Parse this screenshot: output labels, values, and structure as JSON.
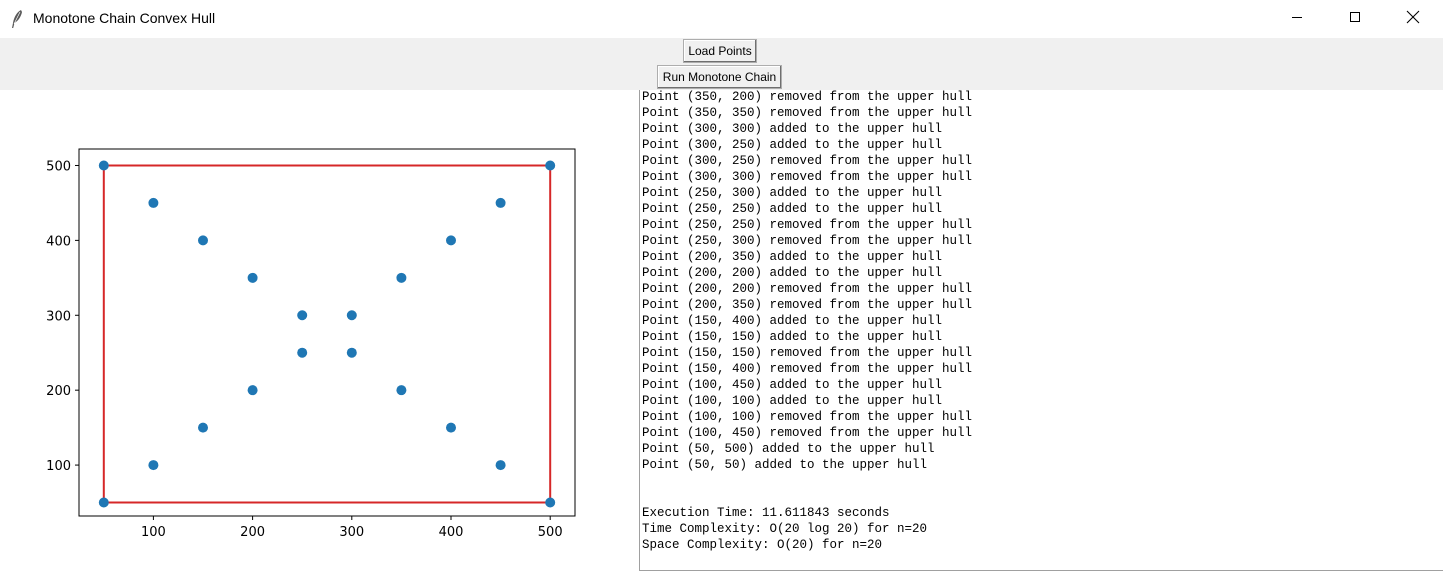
{
  "window": {
    "title": "Monotone Chain Convex Hull",
    "icon": "feather-icon",
    "controls": [
      "minimize-icon",
      "maximize-icon",
      "close-icon"
    ]
  },
  "toolbar": {
    "load_label": "Load Points",
    "run_label": "Run Monotone Chain"
  },
  "chart_data": {
    "type": "scatter",
    "title": "",
    "xlabel": "",
    "ylabel": "",
    "xlim": [
      25,
      525
    ],
    "ylim": [
      32,
      522
    ],
    "xticks": [
      100,
      200,
      300,
      400,
      500
    ],
    "yticks": [
      100,
      200,
      300,
      400,
      500
    ],
    "grid": false,
    "point_color": "#1f77b4",
    "hull_color": "#d62728",
    "points": [
      [
        50,
        500
      ],
      [
        100,
        450
      ],
      [
        150,
        400
      ],
      [
        200,
        350
      ],
      [
        250,
        300
      ],
      [
        300,
        300
      ],
      [
        350,
        350
      ],
      [
        400,
        400
      ],
      [
        450,
        450
      ],
      [
        500,
        500
      ],
      [
        250,
        250
      ],
      [
        300,
        250
      ],
      [
        200,
        200
      ],
      [
        350,
        200
      ],
      [
        150,
        150
      ],
      [
        400,
        150
      ],
      [
        100,
        100
      ],
      [
        450,
        100
      ],
      [
        50,
        50
      ],
      [
        500,
        50
      ]
    ],
    "hull": [
      [
        50,
        50
      ],
      [
        500,
        50
      ],
      [
        500,
        500
      ],
      [
        50,
        500
      ],
      [
        50,
        50
      ]
    ]
  },
  "log": {
    "lines": [
      "Point (350, 200) removed from the upper hull",
      "Point (350, 350) removed from the upper hull",
      "Point (300, 300) added to the upper hull",
      "Point (300, 250) added to the upper hull",
      "Point (300, 250) removed from the upper hull",
      "Point (300, 300) removed from the upper hull",
      "Point (250, 300) added to the upper hull",
      "Point (250, 250) added to the upper hull",
      "Point (250, 250) removed from the upper hull",
      "Point (250, 300) removed from the upper hull",
      "Point (200, 350) added to the upper hull",
      "Point (200, 200) added to the upper hull",
      "Point (200, 200) removed from the upper hull",
      "Point (200, 350) removed from the upper hull",
      "Point (150, 400) added to the upper hull",
      "Point (150, 150) added to the upper hull",
      "Point (150, 150) removed from the upper hull",
      "Point (150, 400) removed from the upper hull",
      "Point (100, 450) added to the upper hull",
      "Point (100, 100) added to the upper hull",
      "Point (100, 100) removed from the upper hull",
      "Point (100, 450) removed from the upper hull",
      "Point (50, 500) added to the upper hull",
      "Point (50, 50) added to the upper hull",
      "",
      "",
      "Execution Time: 11.611843 seconds",
      "Time Complexity: O(20 log 20) for n=20",
      "Space Complexity: O(20) for n=20"
    ]
  }
}
